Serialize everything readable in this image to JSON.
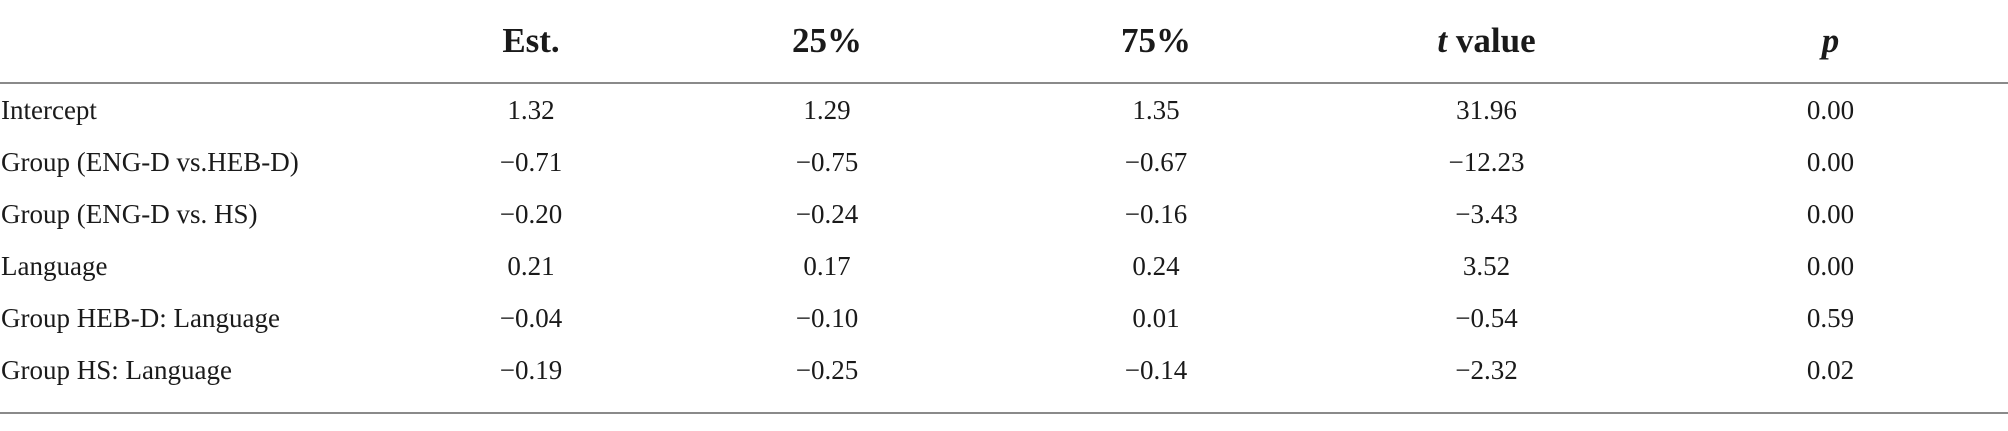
{
  "table": {
    "headers": [
      "",
      "Est.",
      "25%",
      "75%",
      "t value",
      "p"
    ],
    "header_t_italic": "t",
    "header_t_rest": " value",
    "rows": [
      {
        "label": "Intercept",
        "cells": [
          "1.32",
          "1.29",
          "1.35",
          "31.96",
          "0.00"
        ]
      },
      {
        "label": "Group (ENG-D vs.HEB-D)",
        "cells": [
          "−0.71",
          "−0.75",
          "−0.67",
          "−12.23",
          "0.00"
        ]
      },
      {
        "label": "Group (ENG-D vs. HS)",
        "cells": [
          "−0.20",
          "−0.24",
          "−0.16",
          "−3.43",
          "0.00"
        ]
      },
      {
        "label": "Language",
        "cells": [
          "0.21",
          "0.17",
          "0.24",
          "3.52",
          "0.00"
        ]
      },
      {
        "label": "Group HEB-D: Language",
        "cells": [
          "−0.04",
          "−0.10",
          "0.01",
          "−0.54",
          "0.59"
        ]
      },
      {
        "label": "Group HS: Language",
        "cells": [
          "−0.19",
          "−0.25",
          "−0.14",
          "−2.32",
          "0.02"
        ]
      }
    ]
  }
}
